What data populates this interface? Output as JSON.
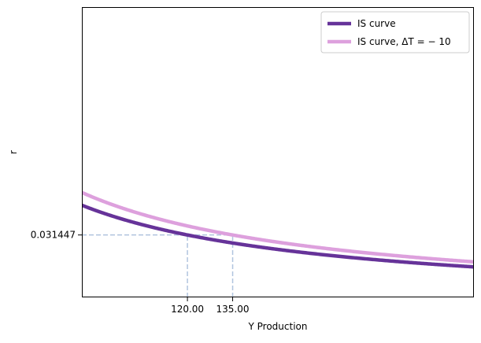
{
  "chart_data": {
    "type": "line",
    "xlabel": "Y Production",
    "ylabel": "r",
    "xlim": [
      85,
      215
    ],
    "ylim": [
      0.0043,
      0.1306
    ],
    "x_ticks": [
      {
        "value": 120,
        "label": "120.00"
      },
      {
        "value": 135,
        "label": "135.00"
      }
    ],
    "y_ticks": [
      {
        "value": 0.031447,
        "label": "0.031447"
      }
    ],
    "series": [
      {
        "name": "IS curve",
        "color": "#663399",
        "formula": "r = 3.7736 / Y",
        "x": [
          85,
          90,
          95,
          100,
          105,
          110,
          115,
          120,
          125,
          130,
          135,
          140,
          145,
          150,
          155,
          160,
          165,
          170,
          175,
          180,
          185,
          190,
          195,
          200,
          205,
          210,
          215
        ],
        "y": [
          0.044395,
          0.041929,
          0.039722,
          0.037736,
          0.035939,
          0.034305,
          0.032814,
          0.031447,
          0.030189,
          0.029028,
          0.027953,
          0.026954,
          0.026025,
          0.025157,
          0.024346,
          0.023585,
          0.02287,
          0.022198,
          0.021563,
          0.020964,
          0.020398,
          0.019861,
          0.019352,
          0.018868,
          0.018408,
          0.01797,
          0.017552
        ]
      },
      {
        "name": "IS curve, ΔT = − 10",
        "color": "#dda0dd",
        "formula": "r = 4.2453 / Y",
        "x": [
          85,
          90,
          95,
          100,
          105,
          110,
          115,
          120,
          125,
          130,
          135,
          140,
          145,
          150,
          155,
          160,
          165,
          170,
          175,
          180,
          185,
          190,
          195,
          200,
          205,
          210,
          215
        ],
        "y": [
          0.049945,
          0.04717,
          0.044687,
          0.042453,
          0.040431,
          0.038594,
          0.036916,
          0.035378,
          0.033962,
          0.032656,
          0.031447,
          0.030324,
          0.029278,
          0.028302,
          0.027389,
          0.026533,
          0.025729,
          0.024972,
          0.024259,
          0.023585,
          0.022948,
          0.022344,
          0.021771,
          0.021227,
          0.020709,
          0.020216,
          0.019745
        ]
      }
    ],
    "reference_lines": {
      "color": "#b0c4de",
      "style": "dashed",
      "horizontal_y": 0.031447,
      "vertical_x": [
        120,
        135
      ]
    },
    "legend": {
      "placement": "top-right",
      "items": [
        "IS curve",
        "IS curve, ΔT = − 10"
      ]
    },
    "grid": false
  }
}
